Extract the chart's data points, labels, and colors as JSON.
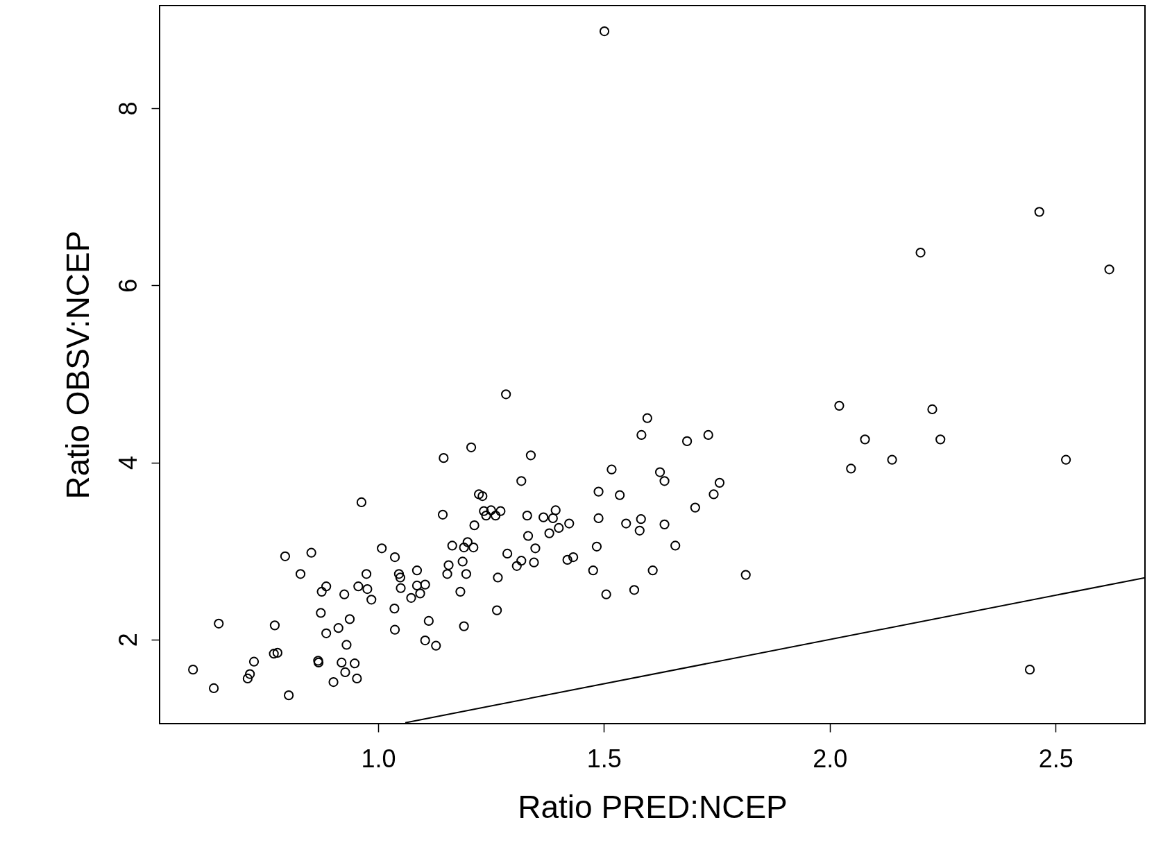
{
  "chart_data": {
    "type": "scatter",
    "xlabel": "Ratio PRED:NCEP",
    "ylabel": "Ratio OBSV:NCEP",
    "xlim": [
      0.516,
      2.698
    ],
    "ylim": [
      1.05,
      9.16
    ],
    "xticks": [
      {
        "value": 1,
        "label": "1.0"
      },
      {
        "value": 1.5,
        "label": "1.5"
      },
      {
        "value": 2,
        "label": "2.0"
      },
      {
        "value": 2.5,
        "label": "2.5"
      }
    ],
    "yticks": [
      2,
      4,
      6,
      8
    ],
    "grid": false,
    "series": [
      {
        "marker": "circle",
        "color": "#000000",
        "x": [
          0.59,
          0.636,
          0.647,
          0.711,
          0.716,
          0.725,
          0.771,
          0.769,
          0.777,
          0.794,
          0.802,
          0.828,
          0.852,
          0.867,
          0.868,
          0.873,
          0.875,
          0.885,
          0.885,
          0.901,
          0.912,
          0.919,
          0.925,
          0.927,
          0.93,
          0.937,
          0.948,
          0.953,
          0.956,
          0.963,
          0.974,
          0.976,
          0.985,
          1.008,
          1.037,
          1.036,
          1.037,
          1.046,
          1.049,
          1.05,
          1.073,
          1.086,
          1.086,
          1.093,
          1.104,
          1.104,
          1.112,
          1.128,
          1.143,
          1.145,
          1.153,
          1.156,
          1.164,
          1.182,
          1.187,
          1.19,
          1.19,
          1.195,
          1.198,
          1.206,
          1.211,
          1.213,
          1.223,
          1.231,
          1.234,
          1.239,
          1.25,
          1.26,
          1.263,
          1.265,
          1.271,
          1.283,
          1.286,
          1.307,
          1.317,
          1.317,
          1.33,
          1.332,
          1.338,
          1.345,
          1.348,
          1.366,
          1.379,
          1.387,
          1.393,
          1.4,
          1.423,
          1.419,
          1.432,
          1.476,
          1.484,
          1.488,
          1.488,
          1.501,
          1.505,
          1.517,
          1.535,
          1.549,
          1.567,
          1.579,
          1.582,
          1.583,
          1.596,
          1.608,
          1.624,
          1.634,
          1.634,
          1.658,
          1.684,
          1.702,
          1.731,
          1.743,
          1.756,
          1.814,
          2.021,
          2.047,
          2.078,
          2.138,
          2.201,
          2.227,
          2.245,
          2.443,
          2.464,
          2.523,
          2.619
        ],
        "values": [
          1.66,
          1.45,
          2.18,
          1.56,
          1.61,
          1.75,
          2.16,
          1.84,
          1.85,
          2.94,
          1.37,
          2.74,
          2.98,
          1.76,
          1.74,
          2.3,
          2.54,
          2.6,
          2.07,
          1.52,
          2.13,
          1.74,
          2.51,
          1.63,
          1.94,
          2.23,
          1.73,
          1.56,
          2.6,
          3.55,
          2.74,
          2.57,
          2.45,
          3.03,
          2.93,
          2.35,
          2.11,
          2.74,
          2.7,
          2.58,
          2.47,
          2.78,
          2.61,
          2.52,
          2.62,
          1.99,
          2.21,
          1.93,
          3.41,
          4.05,
          2.74,
          2.84,
          3.06,
          2.54,
          2.88,
          2.15,
          3.04,
          2.74,
          3.1,
          4.17,
          3.04,
          3.29,
          3.64,
          3.62,
          3.45,
          3.4,
          3.46,
          3.4,
          2.33,
          2.7,
          3.45,
          4.77,
          2.97,
          2.83,
          2.89,
          3.79,
          3.4,
          3.17,
          4.08,
          2.87,
          3.03,
          3.38,
          3.2,
          3.37,
          3.46,
          3.26,
          3.31,
          2.9,
          2.93,
          2.78,
          3.05,
          3.67,
          3.37,
          8.87,
          2.51,
          3.92,
          3.63,
          3.31,
          2.56,
          3.23,
          3.36,
          4.31,
          4.5,
          2.78,
          3.89,
          3.79,
          3.3,
          3.06,
          4.24,
          3.49,
          4.31,
          3.64,
          3.77,
          2.73,
          4.64,
          3.93,
          4.26,
          4.03,
          6.37,
          4.6,
          4.26,
          1.66,
          6.83,
          4.03,
          6.18
        ]
      },
      {
        "type": "line",
        "color": "#000000",
        "x": [
          1.06,
          2.698
        ],
        "values": [
          1.06,
          2.698
        ]
      }
    ]
  }
}
